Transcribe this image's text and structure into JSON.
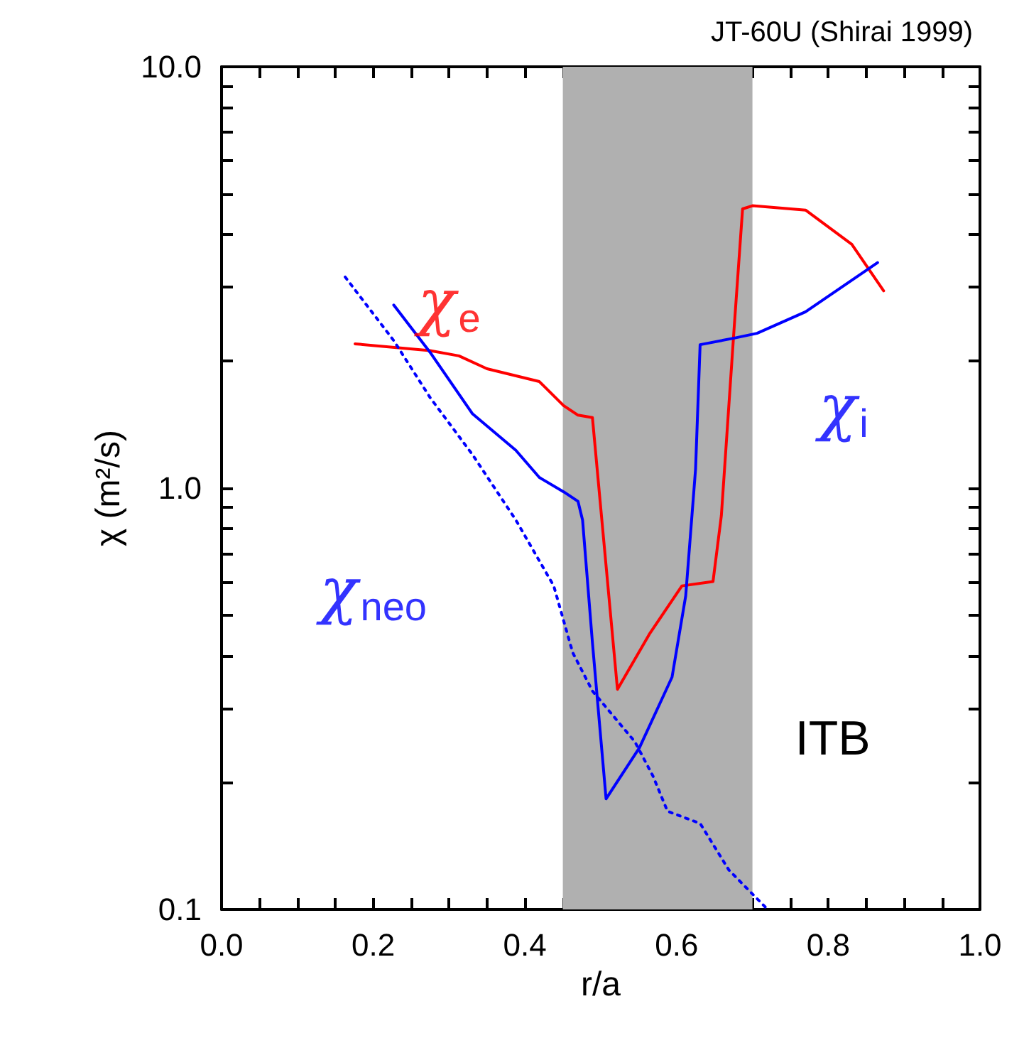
{
  "chart_data": {
    "type": "line",
    "title": "JT-60U (Shirai 1999)",
    "xlabel": "r/a",
    "ylabel": "χ (m²/s)",
    "log": "y",
    "grid": false,
    "legend": false,
    "marker": "none",
    "xlim": [
      0,
      1
    ],
    "ylim": [
      0.1,
      10
    ],
    "xticks": [
      {
        "value": 0,
        "label": "0.0"
      },
      {
        "value": 0.05,
        "label": null
      },
      {
        "value": 0.1,
        "label": null
      },
      {
        "value": 0.15,
        "label": null
      },
      {
        "value": 0.2,
        "label": "0.2"
      },
      {
        "value": 0.25,
        "label": null
      },
      {
        "value": 0.3,
        "label": null
      },
      {
        "value": 0.35,
        "label": null
      },
      {
        "value": 0.4,
        "label": "0.4"
      },
      {
        "value": 0.45,
        "label": null
      },
      {
        "value": 0.5,
        "label": null
      },
      {
        "value": 0.55,
        "label": null
      },
      {
        "value": 0.6,
        "label": "0.6"
      },
      {
        "value": 0.65,
        "label": null
      },
      {
        "value": 0.7,
        "label": null
      },
      {
        "value": 0.75,
        "label": null
      },
      {
        "value": 0.8,
        "label": "0.8"
      },
      {
        "value": 0.85,
        "label": null
      },
      {
        "value": 0.9,
        "label": null
      },
      {
        "value": 0.95,
        "label": null
      },
      {
        "value": 1,
        "label": "1.0"
      }
    ],
    "yticks": [
      {
        "value": 0.1,
        "label": "0.1"
      },
      {
        "value": 0.2,
        "label": null
      },
      {
        "value": 0.3,
        "label": null
      },
      {
        "value": 0.4,
        "label": null
      },
      {
        "value": 0.5,
        "label": null
      },
      {
        "value": 0.6,
        "label": null
      },
      {
        "value": 0.7,
        "label": null
      },
      {
        "value": 0.8,
        "label": null
      },
      {
        "value": 0.9,
        "label": null
      },
      {
        "value": 1,
        "label": "1.0"
      },
      {
        "value": 2,
        "label": null
      },
      {
        "value": 3,
        "label": null
      },
      {
        "value": 4,
        "label": null
      },
      {
        "value": 5,
        "label": null
      },
      {
        "value": 6,
        "label": null
      },
      {
        "value": 7,
        "label": null
      },
      {
        "value": 8,
        "label": null
      },
      {
        "value": 9,
        "label": null
      },
      {
        "value": 10,
        "label": "10.0"
      }
    ],
    "bands": [
      {
        "axis": "x",
        "from": 0.45,
        "to": 0.7,
        "label": "ITB",
        "color": "#b0b0b0"
      }
    ],
    "series": [
      {
        "name": "χ$_{e}$",
        "color": "#ff0000",
        "line_style": "solid",
        "x": [
          0.176,
          0.275,
          0.313,
          0.35,
          0.419,
          0.451,
          0.47,
          0.489,
          0.522,
          0.564,
          0.607,
          0.648,
          0.659,
          0.676,
          0.687,
          0.7,
          0.77,
          0.831,
          0.873
        ],
        "values": [
          2.2,
          2.12,
          2.06,
          1.92,
          1.79,
          1.57,
          1.49,
          1.47,
          0.333,
          0.45,
          0.586,
          0.6,
          0.86,
          2.42,
          4.6,
          4.68,
          4.57,
          3.79,
          2.94
        ]
      },
      {
        "name": "χ$_{i}$",
        "color": "#0000ff",
        "line_style": "solid",
        "x": [
          0.227,
          0.275,
          0.331,
          0.388,
          0.419,
          0.451,
          0.47,
          0.476,
          0.489,
          0.507,
          0.551,
          0.594,
          0.612,
          0.625,
          0.631,
          0.676,
          0.706,
          0.77,
          0.865
        ],
        "values": [
          2.72,
          2.1,
          1.5,
          1.23,
          1.06,
          0.98,
          0.93,
          0.84,
          0.43,
          0.183,
          0.242,
          0.356,
          0.555,
          1.11,
          2.19,
          2.27,
          2.33,
          2.62,
          3.43
        ]
      },
      {
        "name": "χ$_{neo}$",
        "color": "#0000ff",
        "line_style": "dotted",
        "x": [
          0.163,
          0.227,
          0.275,
          0.331,
          0.388,
          0.438,
          0.463,
          0.489,
          0.545,
          0.569,
          0.588,
          0.631,
          0.669,
          0.72
        ],
        "values": [
          3.17,
          2.24,
          1.64,
          1.2,
          0.84,
          0.586,
          0.407,
          0.33,
          0.25,
          0.207,
          0.171,
          0.16,
          0.124,
          0.1
        ]
      }
    ]
  }
}
